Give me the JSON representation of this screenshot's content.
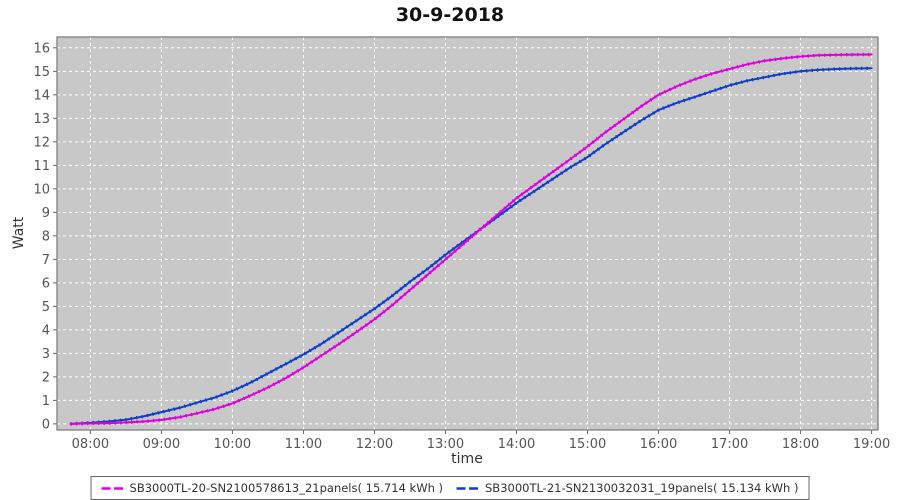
{
  "chart_data": {
    "type": "line",
    "title": "30-9-2018",
    "xlabel": "time",
    "ylabel": "Watt",
    "legend_position": "bottom",
    "grid": "white dashed on gray plot background",
    "x_ticks": [
      "08:00",
      "09:00",
      "10:00",
      "11:00",
      "12:00",
      "13:00",
      "14:00",
      "15:00",
      "16:00",
      "17:00",
      "18:00",
      "19:00"
    ],
    "x_tick_hours": [
      8,
      9,
      10,
      11,
      12,
      13,
      14,
      15,
      16,
      17,
      18,
      19
    ],
    "y_ticks": [
      0,
      1,
      2,
      3,
      4,
      5,
      6,
      7,
      8,
      9,
      10,
      11,
      12,
      13,
      14,
      15,
      16
    ],
    "xlim_hours": [
      7.53,
      19.09
    ],
    "ylim": [
      -0.26,
      16.46
    ],
    "x_hours": [
      7.72,
      8,
      8.25,
      8.5,
      8.75,
      9,
      9.25,
      9.5,
      9.75,
      10,
      10.25,
      10.5,
      10.75,
      11,
      11.25,
      11.5,
      11.75,
      12,
      12.25,
      12.5,
      12.75,
      13,
      13.25,
      13.5,
      13.75,
      14,
      14.25,
      14.5,
      14.75,
      15,
      15.25,
      15.5,
      15.75,
      16,
      16.25,
      16.5,
      16.75,
      17,
      17.25,
      17.5,
      17.75,
      18,
      18.25,
      18.5,
      18.75,
      19
    ],
    "series": [
      {
        "name": "SB3000TL-20-SN2100578613_21panels( 15.714 kWh )",
        "color": "#DD00DD",
        "total_kwh": 15.714,
        "values": [
          0,
          0.02,
          0.03,
          0.06,
          0.1,
          0.17,
          0.28,
          0.45,
          0.63,
          0.87,
          1.2,
          1.55,
          1.95,
          2.4,
          2.9,
          3.4,
          3.92,
          4.45,
          5.05,
          5.7,
          6.35,
          7.0,
          7.65,
          8.3,
          8.95,
          9.6,
          10.15,
          10.7,
          11.25,
          11.8,
          12.4,
          12.95,
          13.5,
          14.0,
          14.35,
          14.65,
          14.9,
          15.1,
          15.3,
          15.45,
          15.55,
          15.63,
          15.68,
          15.7,
          15.71,
          15.714
        ]
      },
      {
        "name": "SB3000TL-21-SN2130032031_19panels( 15.134 kWh )",
        "color": "#0D3EC8",
        "total_kwh": 15.134,
        "values": [
          0,
          0.05,
          0.1,
          0.18,
          0.32,
          0.5,
          0.68,
          0.9,
          1.12,
          1.4,
          1.75,
          2.15,
          2.55,
          2.95,
          3.4,
          3.9,
          4.4,
          4.9,
          5.45,
          6.05,
          6.6,
          7.2,
          7.75,
          8.3,
          8.85,
          9.4,
          9.9,
          10.4,
          10.9,
          11.35,
          11.9,
          12.4,
          12.9,
          13.35,
          13.65,
          13.9,
          14.15,
          14.4,
          14.6,
          14.75,
          14.9,
          15.0,
          15.06,
          15.1,
          15.12,
          15.134
        ]
      }
    ],
    "colors": {
      "plot_bg": "#C8C8C8",
      "grid": "#FFFFFF",
      "plot_border": "#777777",
      "tick": "#666666",
      "tick_label": "#555555",
      "title": "#111111",
      "axis_label": "#333333",
      "legend_border": "#666666",
      "page_bg": "#FFFFFF"
    }
  }
}
